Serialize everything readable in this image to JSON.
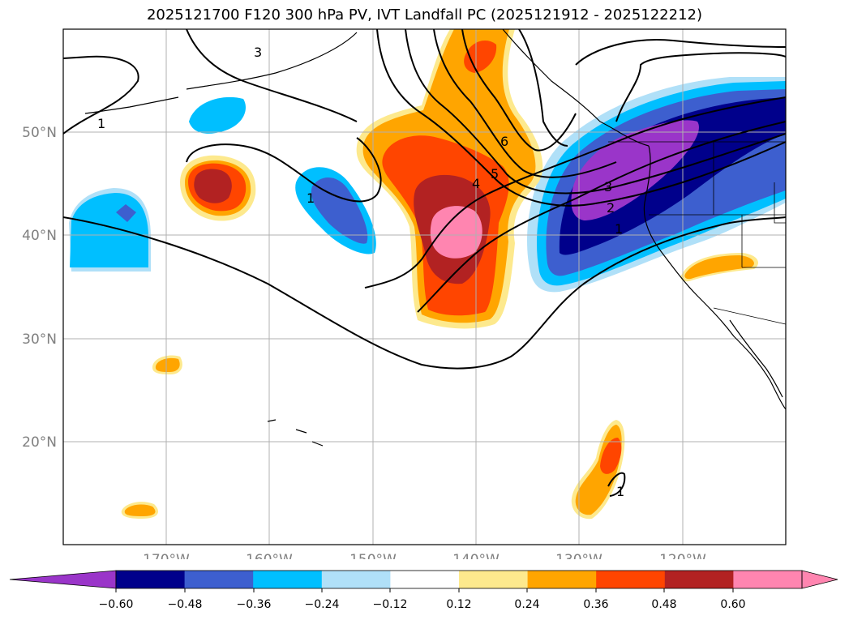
{
  "title": "2025121700 F120 300 hPa PV, IVT Landfall PC (2025121912 - 2025122212)",
  "map": {
    "lon_labels": [
      "170°W",
      "160°W",
      "150°W",
      "140°W",
      "130°W",
      "120°W"
    ],
    "lat_labels": [
      "50°N",
      "40°N",
      "30°N",
      "20°N"
    ],
    "contour_labels": [
      "1",
      "1",
      "1",
      "2",
      "3",
      "4",
      "5",
      "6",
      "3",
      "1"
    ],
    "colors": {
      "neg_060": "#9a35c9",
      "neg_048": "#00008b",
      "neg_036": "#3d5fcf",
      "neg_024": "#00bfff",
      "neg_012": "#b0e0f8",
      "pos_012": "#fde98d",
      "pos_024": "#ffa500",
      "pos_036": "#ff4500",
      "pos_048": "#b22222",
      "pos_060": "#ff85b0"
    }
  },
  "colorbar": {
    "tick_labels": [
      "−0.60",
      "−0.48",
      "−0.36",
      "−0.24",
      "−0.12",
      "0.12",
      "0.24",
      "0.36",
      "0.48",
      "0.60"
    ],
    "colors": [
      "#9a35c9",
      "#00008b",
      "#3d5fcf",
      "#00bfff",
      "#b0e0f8",
      "#ffffff",
      "#fde98d",
      "#ffa500",
      "#ff4500",
      "#b22222",
      "#ff85b0",
      "#ff85b0"
    ]
  }
}
